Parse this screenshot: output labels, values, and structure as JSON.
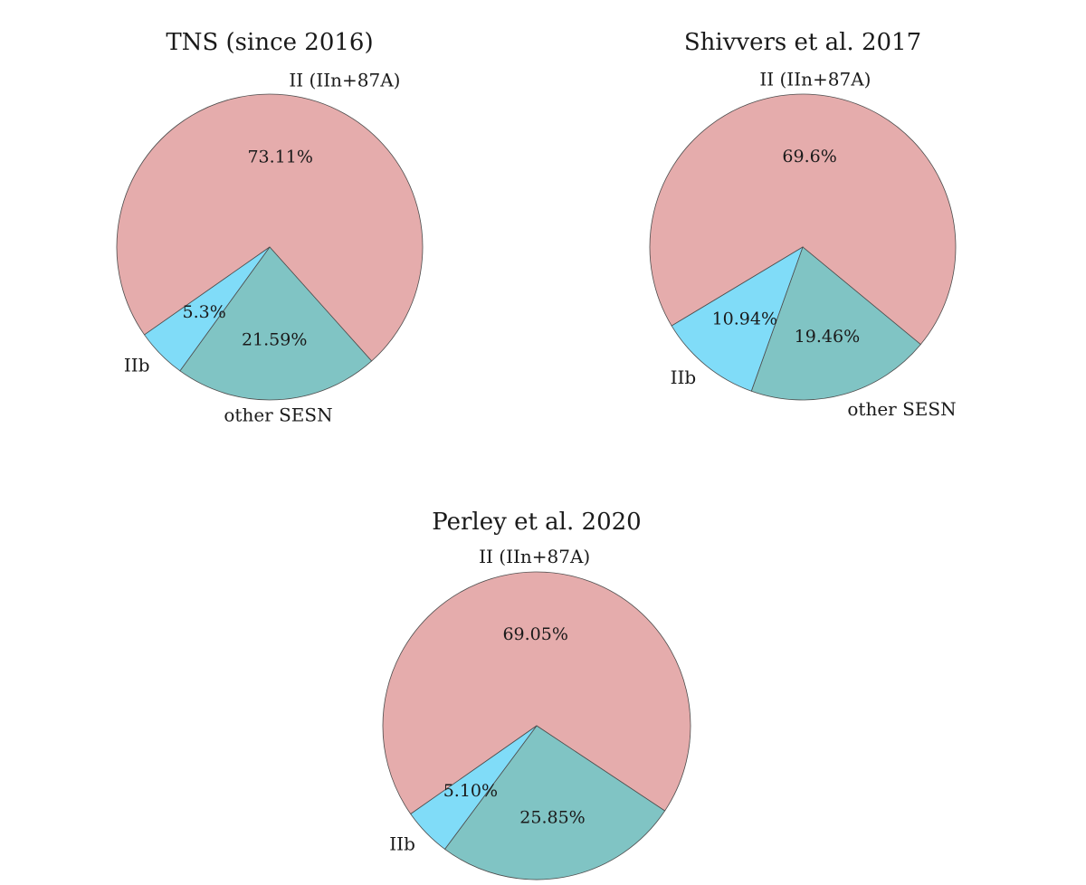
{
  "chart_data": [
    {
      "type": "pie",
      "title": "TNS (since 2016)",
      "slices": [
        {
          "label": "II (IIn+87A)",
          "value": 73.11,
          "pct_label": "73.11%",
          "color": "#e5acac"
        },
        {
          "label": "other SESN",
          "value": 21.59,
          "pct_label": "21.59%",
          "color": "#80c4c4"
        },
        {
          "label": "IIb",
          "value": 5.3,
          "pct_label": "5.3%",
          "color": "#80dcf8"
        }
      ]
    },
    {
      "type": "pie",
      "title": "Shivvers et al. 2017",
      "slices": [
        {
          "label": "II (IIn+87A)",
          "value": 69.6,
          "pct_label": "69.6%",
          "color": "#e5acac"
        },
        {
          "label": "other SESN",
          "value": 19.46,
          "pct_label": "19.46%",
          "color": "#80c4c4"
        },
        {
          "label": "IIb",
          "value": 10.94,
          "pct_label": "10.94%",
          "color": "#80dcf8"
        }
      ]
    },
    {
      "type": "pie",
      "title": "Perley et al. 2020",
      "slices": [
        {
          "label": "II (IIn+87A)",
          "value": 69.05,
          "pct_label": "69.05%",
          "color": "#e5acac"
        },
        {
          "label": "other SESN",
          "value": 25.85,
          "pct_label": "25.85%",
          "color": "#80c4c4"
        },
        {
          "label": "IIb",
          "value": 5.1,
          "pct_label": "5.10%",
          "color": "#80dcf8"
        }
      ]
    }
  ]
}
